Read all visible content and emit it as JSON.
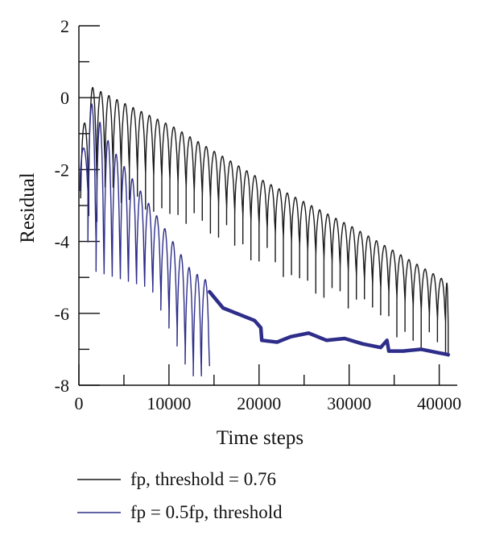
{
  "chart_data": {
    "type": "line",
    "xlabel": "Time steps",
    "ylabel": "Residual",
    "xlim": [
      0,
      42000
    ],
    "ylim": [
      -8,
      2
    ],
    "xticks": [
      0,
      10000,
      20000,
      30000,
      40000
    ],
    "yticks": [
      2,
      0,
      -2,
      -4,
      -6,
      -8
    ],
    "xtick_labels": [
      "0",
      "10000",
      "20000",
      "30000",
      "40000"
    ],
    "ytick_labels": [
      "2",
      "0",
      "-2",
      "-4",
      "-6",
      "-8"
    ],
    "grid": false,
    "legend_position": "bottom",
    "series": [
      {
        "name": "fp, threshold = 0.76",
        "color": "#1a1a1a",
        "style": "oscillating",
        "x_start": 200,
        "x_end": 41000,
        "period": 900,
        "upper_envelope": [
          [
            200,
            -0.7
          ],
          [
            1000,
            0.3
          ],
          [
            5000,
            -0.2
          ],
          [
            10000,
            -0.8
          ],
          [
            20000,
            -2.3
          ],
          [
            30000,
            -3.6
          ],
          [
            41000,
            -5.2
          ]
        ],
        "lower_envelope": [
          [
            200,
            -2.8
          ],
          [
            2000,
            -1.8
          ],
          [
            10000,
            -2.3
          ],
          [
            20000,
            -3.6
          ],
          [
            30000,
            -4.9
          ],
          [
            41000,
            -6.4
          ]
        ],
        "spike_depth": 1.2
      },
      {
        "name": "fp = 0.5fp, threshold",
        "color": "#2e2e8a",
        "style": "oscillating-then-smooth",
        "x_start": 100,
        "x_switch": 14500,
        "period": 900,
        "upper_envelope": [
          [
            100,
            -1.4
          ],
          [
            700,
            0.0
          ],
          [
            3000,
            -1.3
          ],
          [
            8000,
            -3.2
          ],
          [
            12000,
            -4.8
          ],
          [
            14500,
            -5.2
          ]
        ],
        "lower_envelope": [
          [
            100,
            -2.6
          ],
          [
            1500,
            -4.8
          ],
          [
            8000,
            -5.3
          ],
          [
            12500,
            -7.8
          ],
          [
            14500,
            -7.2
          ]
        ],
        "smooth": [
          [
            14500,
            -5.4
          ],
          [
            16000,
            -5.85
          ],
          [
            17500,
            -6.0
          ],
          [
            19500,
            -6.2
          ],
          [
            20200,
            -6.4
          ],
          [
            20300,
            -6.75
          ],
          [
            22000,
            -6.8
          ],
          [
            23500,
            -6.65
          ],
          [
            25500,
            -6.55
          ],
          [
            27500,
            -6.75
          ],
          [
            29500,
            -6.7
          ],
          [
            31500,
            -6.85
          ],
          [
            33500,
            -6.95
          ],
          [
            34200,
            -6.75
          ],
          [
            34400,
            -7.05
          ],
          [
            36000,
            -7.05
          ],
          [
            38000,
            -7.0
          ],
          [
            40000,
            -7.1
          ],
          [
            41000,
            -7.15
          ]
        ]
      }
    ]
  }
}
